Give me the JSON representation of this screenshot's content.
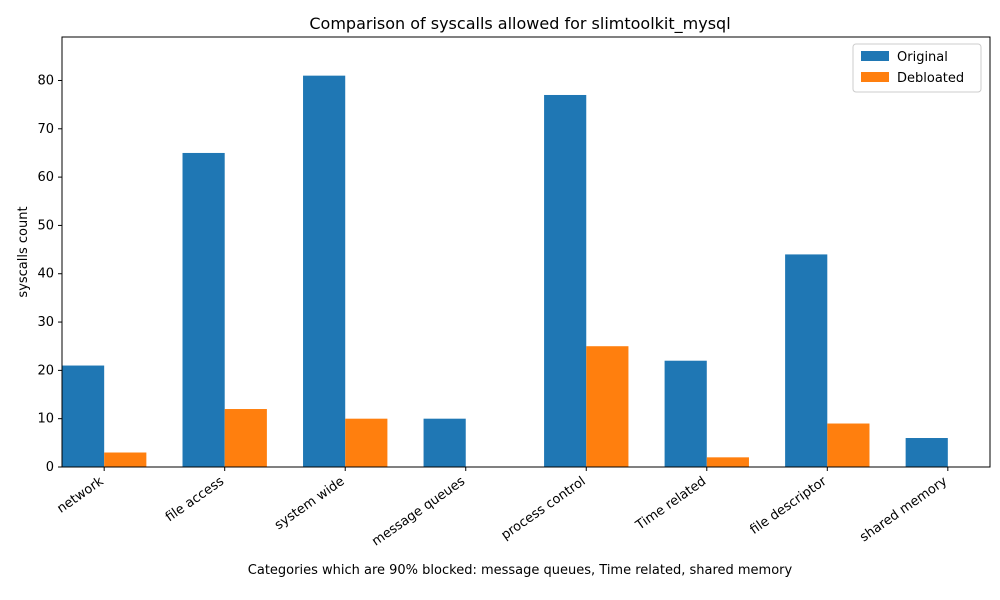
{
  "chart_data": {
    "type": "bar",
    "title": "Comparison of syscalls allowed for slimtoolkit_mysql",
    "xlabel": "Categories which are 90% blocked: message queues, Time related, shared memory",
    "ylabel": "syscalls count",
    "categories": [
      "network",
      "file access",
      "system wide",
      "message queues",
      "process control",
      "Time related",
      "file descriptor",
      "shared memory"
    ],
    "series": [
      {
        "name": "Original",
        "color": "#1f77b4",
        "values": [
          21,
          65,
          81,
          10,
          77,
          22,
          44,
          6
        ]
      },
      {
        "name": "Debloated",
        "color": "#ff7f0e",
        "values": [
          3,
          12,
          10,
          0,
          25,
          2,
          9,
          0
        ]
      }
    ],
    "ylim": [
      0,
      89
    ],
    "yticks": [
      0,
      10,
      20,
      30,
      40,
      50,
      60,
      70,
      80
    ],
    "grid": false,
    "legend_position": "top-right"
  }
}
